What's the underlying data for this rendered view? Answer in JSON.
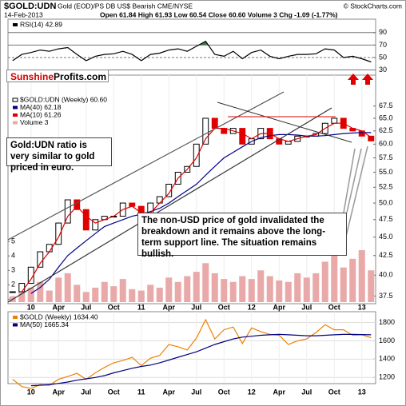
{
  "header": {
    "symbol": "$GOLD:UDN",
    "description": "Gold (EOD)/PS DB US$ Bearish CME/NYSE",
    "source": "© StockCharts.com",
    "date": "14-Feb-2013",
    "stats": "Open 61.84 High 61.93 Low 60.54 Close 60.60 Volume 3 Chg -1.09 (-1.77%)"
  },
  "logo": {
    "part1": "Sunshine",
    "part2": "Profits.com"
  },
  "chart_data": [
    {
      "type": "line",
      "series": [
        {
          "name": "RSI(14) 42.89",
          "color": "#000000",
          "values": [
            45,
            55,
            58,
            62,
            60,
            64,
            66,
            55,
            45,
            52,
            55,
            56,
            60,
            55,
            45,
            55,
            57,
            62,
            64,
            60,
            68,
            76,
            55,
            52,
            60,
            48,
            58,
            62,
            52,
            48,
            52,
            55,
            55,
            56,
            64,
            62,
            50,
            52,
            48,
            42.89
          ]
        }
      ],
      "ylim": [
        23,
        109
      ],
      "yticks": [
        30,
        50,
        70,
        90
      ],
      "highlight_above": 70,
      "highlight_color": "#3c7a3c",
      "grid": true
    },
    {
      "type": "candlestick",
      "categories": [
        null,
        null,
        "10",
        null,
        null,
        "Apr",
        null,
        null,
        "Jul",
        null,
        null,
        "Oct",
        null,
        null,
        "11",
        null,
        null,
        "Apr",
        null,
        null,
        "Jul",
        null,
        null,
        "Oct",
        null,
        null,
        "12",
        null,
        null,
        "Apr",
        null,
        null,
        "Jul",
        null,
        null,
        "Oct",
        null,
        null,
        "13",
        null
      ],
      "series": [
        {
          "name": "$GOLD:UDN (Weekly) 60.60",
          "kind": "candle",
          "color": "#000000",
          "down_color": "#e00000",
          "values": [
            38,
            39,
            41,
            43,
            44,
            47,
            50.5,
            49,
            46,
            47.5,
            48,
            48,
            50,
            49.5,
            47.5,
            50,
            51,
            53,
            55,
            56,
            60,
            65,
            63,
            62,
            63,
            60,
            61,
            63,
            61,
            60,
            60.5,
            61.5,
            61.5,
            62,
            64,
            65,
            63,
            62.5,
            61.5,
            60.6
          ]
        },
        {
          "name": "MA(40) 62.18",
          "kind": "line",
          "color": "#00008b",
          "values": [
            null,
            null,
            37.8,
            38.5,
            39.5,
            41,
            42.5,
            43.5,
            44.5,
            45.5,
            46.5,
            47,
            47.5,
            48,
            48.3,
            48.7,
            49.2,
            50,
            51,
            52,
            53,
            54.5,
            56,
            57.5,
            58.5,
            59.5,
            60.5,
            61.2,
            61.6,
            61.8,
            61.8,
            61.7,
            61.5,
            61.5,
            61.6,
            61.8,
            62,
            62.1,
            62.2,
            62.18
          ]
        },
        {
          "name": "MA(10) 61.26",
          "kind": "line",
          "color": "#e00000",
          "values": [
            null,
            38,
            39.5,
            41.5,
            43,
            45,
            48,
            49.5,
            48,
            47,
            47.5,
            48,
            49,
            49.5,
            48.5,
            48.5,
            50,
            51.5,
            54,
            55.5,
            57.5,
            61,
            63,
            63,
            62.5,
            62,
            61,
            62,
            62,
            61,
            60.5,
            61,
            61.5,
            61.8,
            63,
            64,
            64,
            63,
            62.5,
            61.26
          ]
        },
        {
          "name": "Volume 3",
          "kind": "bar",
          "axis": "y2",
          "color": "#eaa9a9",
          "values": [
            1.2,
            1.5,
            1.8,
            2.2,
            1.6,
            2.5,
            2.8,
            2.0,
            1.5,
            1.8,
            2.2,
            1.9,
            2.4,
            1.7,
            1.6,
            2.0,
            1.8,
            2.5,
            2.2,
            2.6,
            2.9,
            3.5,
            2.8,
            2.4,
            2.2,
            2.6,
            2.4,
            3.0,
            2.6,
            2.3,
            2.2,
            2.8,
            2.5,
            2.8,
            3.6,
            4.5,
            3.2,
            3.8,
            4.4,
            3
          ]
        }
      ],
      "log_scale": true,
      "ylim": [
        36.8,
        70
      ],
      "yticks": [
        37.5,
        {
          "value": 40,
          "label": "40.0"
        },
        42.5,
        {
          "value": 45,
          "label": "45.0"
        },
        47.5,
        {
          "value": 50,
          "label": "50.0"
        },
        52.5,
        {
          "value": 55,
          "label": "55.0"
        },
        57.5,
        {
          "value": 60,
          "label": "60.0"
        },
        62.5,
        {
          "value": 65,
          "label": "65.0"
        },
        67.5
      ],
      "y2lim": [
        0.8,
        15.2
      ],
      "y2ticks": [
        1,
        2,
        3,
        4,
        5
      ],
      "annotations": [
        "Gold:UDN ratio is very similar to gold priced in euro.",
        "The non-USD price of gold invalidated the breakdown and it remains above the long-term support line. The situation remains bullish."
      ]
    },
    {
      "type": "line",
      "categories": [
        null,
        null,
        "10",
        null,
        null,
        "Apr",
        null,
        null,
        "Jul",
        null,
        null,
        "Oct",
        null,
        null,
        "11",
        null,
        null,
        "Apr",
        null,
        null,
        "Jul",
        null,
        null,
        "Oct",
        null,
        null,
        "12",
        null,
        null,
        "Apr",
        null,
        null,
        "Jul",
        null,
        null,
        "Oct",
        null,
        null,
        "13",
        null
      ],
      "series": [
        {
          "name": "$GOLD (Weekly) 1634.40",
          "color": "#f08000",
          "values": [
            1180,
            1100,
            1080,
            1120,
            1115,
            1180,
            1210,
            1245,
            1180,
            1250,
            1310,
            1360,
            1385,
            1420,
            1330,
            1410,
            1440,
            1560,
            1535,
            1500,
            1630,
            1830,
            1620,
            1720,
            1750,
            1570,
            1740,
            1700,
            1670,
            1660,
            1560,
            1600,
            1620,
            1690,
            1775,
            1720,
            1720,
            1660,
            1665,
            1634.4
          ]
        },
        {
          "name": "MA(50) 1665.34",
          "color": "#000080",
          "values": [
            null,
            null,
            1110,
            1115,
            1120,
            1135,
            1150,
            1170,
            1185,
            1200,
            1220,
            1250,
            1275,
            1300,
            1320,
            1335,
            1360,
            1390,
            1420,
            1450,
            1480,
            1520,
            1560,
            1590,
            1620,
            1640,
            1650,
            1660,
            1665,
            1670,
            1665,
            1660,
            1655,
            1655,
            1660,
            1665,
            1670,
            1670,
            1668,
            1665.34
          ]
        }
      ],
      "ylim": [
        1150,
        1900
      ],
      "yticks": [
        1200,
        1400,
        1600,
        1800
      ],
      "grid": true
    }
  ]
}
